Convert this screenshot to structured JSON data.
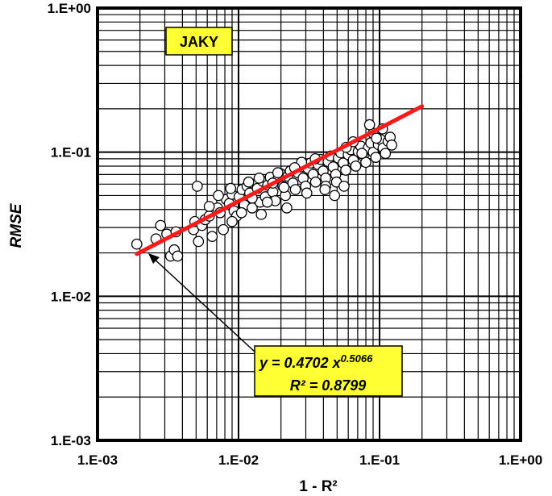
{
  "chart_data": {
    "type": "scatter",
    "title": "",
    "xlabel": "1 - R²",
    "ylabel": "RMSE",
    "xscale": "log",
    "yscale": "log",
    "xlim": [
      0.001,
      1
    ],
    "ylim": [
      0.001,
      1
    ],
    "grid": true,
    "x_tick_labels": [
      "1.E-03",
      "1.E-02",
      "1.E-01",
      "1.E+00"
    ],
    "y_tick_labels": [
      "1.E-03",
      "1.E-02",
      "1.E-01",
      "1.E+00"
    ],
    "dataset_label": "JAKY",
    "fit": {
      "equation_label": "y = 0.4702 x",
      "exponent_label": "0.5066",
      "r2_label": "R² = 0.8799",
      "coefficient": 0.4702,
      "exponent": 0.5066,
      "x_range": [
        0.0019,
        0.2
      ],
      "color": "#ff1a1a"
    },
    "annotation_style": {
      "box_fill": "#ffff33",
      "box_stroke": "#000000"
    },
    "series": [
      {
        "marker": "open-circle",
        "points": [
          [
            0.0019,
            0.023
          ],
          [
            0.0026,
            0.025
          ],
          [
            0.0028,
            0.031
          ],
          [
            0.0031,
            0.027
          ],
          [
            0.0033,
            0.019
          ],
          [
            0.0035,
            0.021
          ],
          [
            0.0036,
            0.028
          ],
          [
            0.0037,
            0.019
          ],
          [
            0.0048,
            0.029
          ],
          [
            0.0049,
            0.033
          ],
          [
            0.0051,
            0.058
          ],
          [
            0.0052,
            0.024
          ],
          [
            0.0055,
            0.031
          ],
          [
            0.0058,
            0.034
          ],
          [
            0.0062,
            0.036
          ],
          [
            0.0065,
            0.026
          ],
          [
            0.0071,
            0.041
          ],
          [
            0.0074,
            0.038
          ],
          [
            0.0078,
            0.029
          ],
          [
            0.0082,
            0.047
          ],
          [
            0.0086,
            0.044
          ],
          [
            0.009,
            0.051
          ],
          [
            0.0093,
            0.039
          ],
          [
            0.0097,
            0.036
          ],
          [
            0.0101,
            0.049
          ],
          [
            0.0106,
            0.055
          ],
          [
            0.011,
            0.043
          ],
          [
            0.0115,
            0.058
          ],
          [
            0.012,
            0.052
          ],
          [
            0.0125,
            0.041
          ],
          [
            0.013,
            0.06
          ],
          [
            0.0136,
            0.056
          ],
          [
            0.0142,
            0.045
          ],
          [
            0.0148,
            0.063
          ],
          [
            0.0155,
            0.049
          ],
          [
            0.0161,
            0.059
          ],
          [
            0.0168,
            0.067
          ],
          [
            0.0175,
            0.053
          ],
          [
            0.0182,
            0.046
          ],
          [
            0.019,
            0.065
          ],
          [
            0.0198,
            0.071
          ],
          [
            0.0206,
            0.058
          ],
          [
            0.0215,
            0.05
          ],
          [
            0.0224,
            0.068
          ],
          [
            0.0233,
            0.074
          ],
          [
            0.0243,
            0.061
          ],
          [
            0.0253,
            0.055
          ],
          [
            0.0264,
            0.072
          ],
          [
            0.0275,
            0.079
          ],
          [
            0.0287,
            0.066
          ],
          [
            0.0299,
            0.058
          ],
          [
            0.0311,
            0.077
          ],
          [
            0.0324,
            0.084
          ],
          [
            0.0338,
            0.07
          ],
          [
            0.0352,
            0.062
          ],
          [
            0.0367,
            0.082
          ],
          [
            0.0382,
            0.089
          ],
          [
            0.0398,
            0.074
          ],
          [
            0.0415,
            0.066
          ],
          [
            0.0432,
            0.086
          ],
          [
            0.045,
            0.094
          ],
          [
            0.0469,
            0.079
          ],
          [
            0.0489,
            0.07
          ],
          [
            0.051,
            0.091
          ],
          [
            0.0531,
            0.099
          ],
          [
            0.0553,
            0.084
          ],
          [
            0.0576,
            0.075
          ],
          [
            0.06,
            0.096
          ],
          [
            0.0625,
            0.104
          ],
          [
            0.0651,
            0.088
          ],
          [
            0.0678,
            0.08
          ],
          [
            0.0707,
            0.101
          ],
          [
            0.0736,
            0.11
          ],
          [
            0.0767,
            0.094
          ],
          [
            0.0799,
            0.085
          ],
          [
            0.0832,
            0.107
          ],
          [
            0.0867,
            0.116
          ],
          [
            0.0903,
            0.1
          ],
          [
            0.0941,
            0.092
          ],
          [
            0.098,
            0.113
          ],
          [
            0.102,
            0.122
          ],
          [
            0.106,
            0.107
          ],
          [
            0.11,
            0.098
          ],
          [
            0.115,
            0.119
          ],
          [
            0.119,
            0.127
          ],
          [
            0.122,
            0.112
          ],
          [
            0.0125,
            0.048
          ],
          [
            0.0175,
            0.061
          ],
          [
            0.021,
            0.057
          ],
          [
            0.0305,
            0.052
          ],
          [
            0.0415,
            0.058
          ],
          [
            0.0495,
            0.062
          ],
          [
            0.022,
            0.041
          ],
          [
            0.016,
            0.045
          ],
          [
            0.0105,
            0.038
          ],
          [
            0.0062,
            0.042
          ],
          [
            0.056,
            0.058
          ],
          [
            0.048,
            0.05
          ],
          [
            0.041,
            0.055
          ],
          [
            0.075,
            0.098
          ],
          [
            0.09,
            0.135
          ],
          [
            0.105,
            0.145
          ],
          [
            0.085,
            0.155
          ],
          [
            0.095,
            0.125
          ],
          [
            0.065,
            0.118
          ],
          [
            0.058,
            0.108
          ],
          [
            0.035,
            0.09
          ],
          [
            0.028,
            0.085
          ],
          [
            0.025,
            0.078
          ],
          [
            0.019,
            0.072
          ],
          [
            0.014,
            0.066
          ],
          [
            0.0118,
            0.062
          ],
          [
            0.0088,
            0.056
          ],
          [
            0.0072,
            0.05
          ],
          [
            0.0145,
            0.037
          ],
          [
            0.009,
            0.033
          ]
        ]
      }
    ]
  }
}
